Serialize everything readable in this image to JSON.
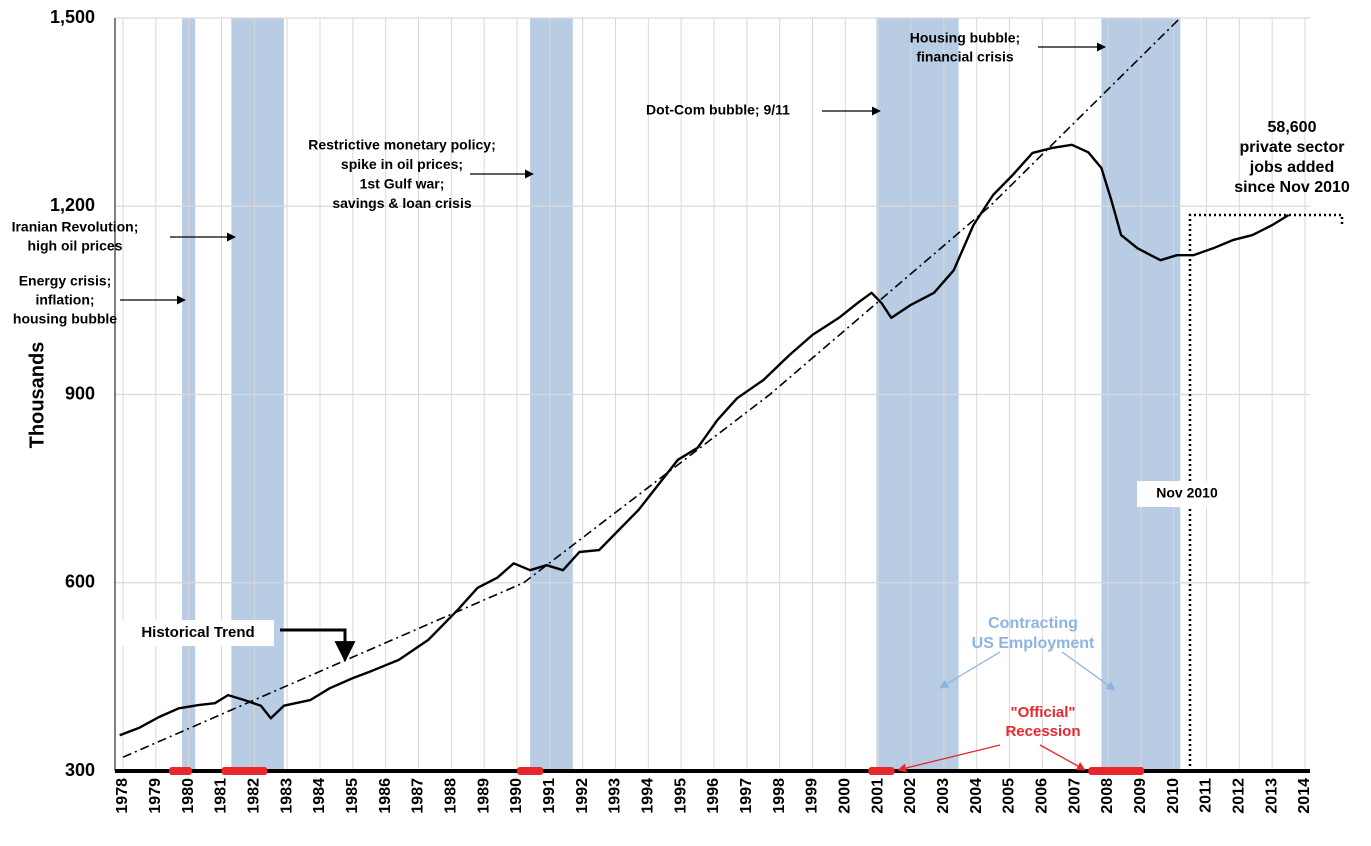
{
  "chart_data": {
    "type": "line",
    "y_label": "Thousands",
    "xlim": [
      1978,
      2014
    ],
    "xticks": [
      1978,
      1979,
      1980,
      1981,
      1982,
      1983,
      1984,
      1985,
      1986,
      1987,
      1988,
      1989,
      1990,
      1991,
      1992,
      1993,
      1994,
      1995,
      1996,
      1997,
      1998,
      1999,
      2000,
      2001,
      2002,
      2003,
      2004,
      2005,
      2006,
      2007,
      2008,
      2009,
      2010,
      2011,
      2012,
      2013,
      2014
    ],
    "ylim": [
      300,
      1500
    ],
    "yticks": [
      300,
      600,
      900,
      {
        "value": 1200,
        "label": "1,200"
      },
      {
        "value": 1500,
        "label": "1,500"
      }
    ],
    "grid": true,
    "series": [
      {
        "color": "#000000",
        "x": [
          1977.9,
          1978.5,
          1979.1,
          1979.7,
          1980.3,
          1980.8,
          1981.2,
          1981.7,
          1982.2,
          1982.5,
          1982.9,
          1983.7,
          1984.3,
          1985.0,
          1985.5,
          1986.4,
          1987.3,
          1988.2,
          1988.8,
          1989.4,
          1989.9,
          1990.4,
          1990.9,
          1991.4,
          1991.9,
          1992.5,
          1993.1,
          1993.7,
          1994.3,
          1994.9,
          1995.5,
          1996.1,
          1996.7,
          1997.5,
          1998.3,
          1999.0,
          1999.8,
          2000.4,
          2000.8,
          2001.1,
          2001.4,
          2002.0,
          2002.7,
          2003.3,
          2003.9,
          2004.5,
          2005.1,
          2005.7,
          2006.3,
          2006.9,
          2007.4,
          2007.8,
          2008.1,
          2008.4,
          2008.9,
          2009.3,
          2009.6,
          2010.1,
          2010.6,
          2011.2,
          2011.8,
          2012.4,
          2013.0,
          2013.5
        ],
        "values": [
          357,
          369,
          386,
          400,
          405,
          408,
          421,
          413,
          404,
          384,
          404,
          413,
          432,
          448,
          458,
          477,
          509,
          557,
          592,
          608,
          631,
          620,
          628,
          620,
          649,
          652,
          684,
          716,
          756,
          796,
          815,
          859,
          894,
          923,
          963,
          995,
          1022,
          1047,
          1062,
          1046,
          1022,
          1043,
          1062,
          1098,
          1170,
          1218,
          1250,
          1285,
          1293,
          1298,
          1286,
          1261,
          1210,
          1154,
          1133,
          1122,
          1114,
          1122,
          1122,
          1133,
          1146,
          1154,
          1170,
          1186
        ]
      },
      {
        "name": "Historical Trend",
        "color": "#000000",
        "dash": "dashdot",
        "x": [
          1978,
          1984.8,
          1990.2,
          1997.7,
          2004.4,
          2010.2
        ],
        "values": [
          322,
          477,
          600,
          900,
          1200,
          1500
        ]
      }
    ],
    "shaded_periods": [
      [
        1979.8,
        1980.2
      ],
      [
        1981.3,
        1982.9
      ],
      [
        1990.4,
        1991.7
      ],
      [
        2000.95,
        2003.45
      ],
      [
        2007.8,
        2010.2
      ]
    ],
    "shade_color": "#b8cce4",
    "recession_periods": [
      [
        1979.4,
        1980.1
      ],
      [
        1981.0,
        1982.4
      ],
      [
        1990.0,
        1990.8
      ],
      [
        2000.7,
        2001.5
      ],
      [
        2007.4,
        2009.1
      ]
    ],
    "recession_color": "#e8262b",
    "annotations": [
      {
        "lines": [
          "Energy crisis;",
          "inflation;",
          "housing bubble"
        ]
      },
      {
        "lines": [
          "Iranian Revolution;",
          "high oil prices"
        ]
      },
      {
        "lines": [
          "Restrictive monetary policy;",
          "spike in oil prices;",
          "1st Gulf war;",
          "savings & loan crisis"
        ]
      },
      {
        "lines": [
          "Dot-Com bubble; 9/11"
        ]
      },
      {
        "lines": [
          "Housing bubble;",
          "financial crisis"
        ]
      },
      {
        "lines": [
          "58,600",
          "private sector",
          "jobs added",
          "since Nov 2010"
        ]
      },
      {
        "lines": [
          "Nov 2010"
        ]
      },
      {
        "lines": [
          "Contracting",
          "US Employment"
        ],
        "color": "#8db3e2"
      },
      {
        "lines": [
          "\"Official\"",
          "Recession"
        ],
        "color": "#e8262b"
      }
    ]
  }
}
